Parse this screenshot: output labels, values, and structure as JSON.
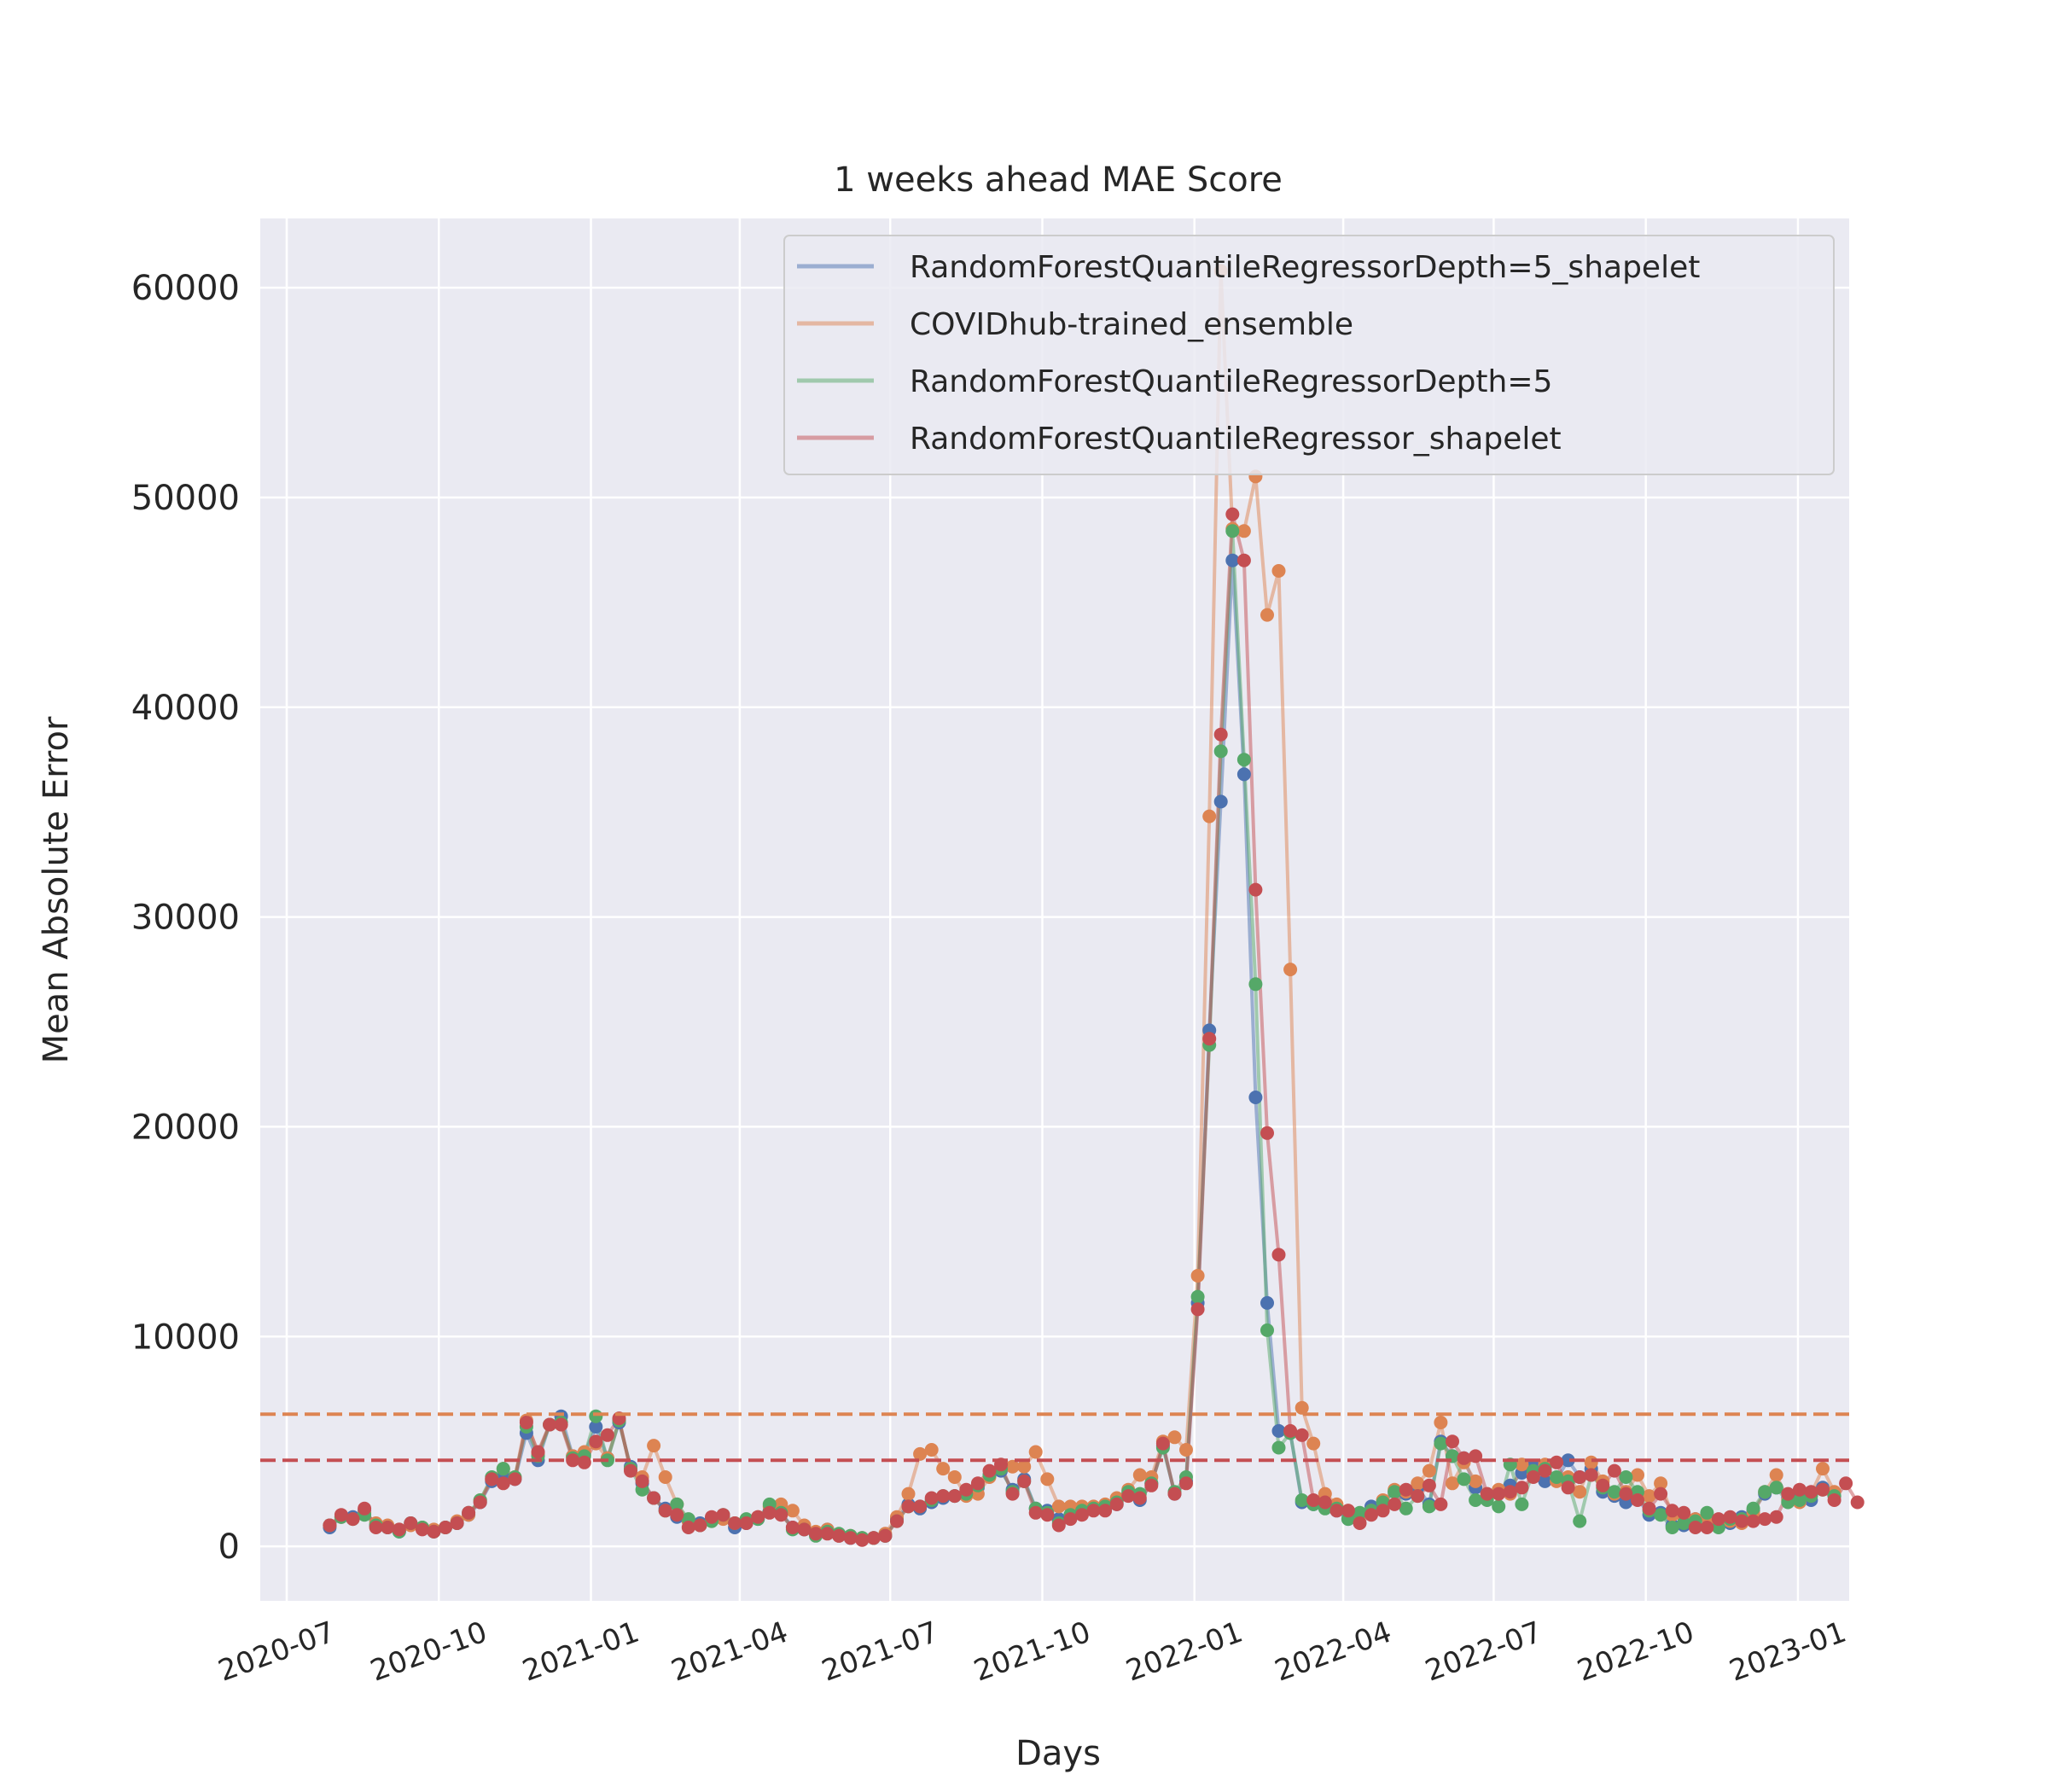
{
  "chart_data": {
    "type": "line",
    "title": "1 weeks ahead MAE Score",
    "xlabel": "Days",
    "ylabel": "Mean Absolute Error",
    "xlim": [
      "2020-06-15",
      "2023-02-01"
    ],
    "ylim": [
      -2600,
      63300
    ],
    "yticks": [
      0,
      10000,
      20000,
      30000,
      40000,
      50000,
      60000
    ],
    "xticks": [
      "2020-07",
      "2020-10",
      "2021-01",
      "2021-04",
      "2021-07",
      "2021-10",
      "2022-01",
      "2022-04",
      "2022-07",
      "2022-10",
      "2023-01"
    ],
    "grid": true,
    "legend_position": "top-right",
    "x_start": "2020-07-27",
    "x_step_days": 7,
    "series": [
      {
        "name": "RandomForestQuantileRegressorDepth=5_shapelet",
        "color": "#4c72b0",
        "values": [
          900,
          1400,
          1400,
          1700,
          1000,
          900,
          700,
          1100,
          900,
          700,
          900,
          1100,
          1500,
          2100,
          3100,
          3300,
          3200,
          5400,
          4100,
          5800,
          6200,
          4300,
          4400,
          5700,
          4200,
          5900,
          3800,
          3000,
          2300,
          1800,
          1400,
          1200,
          1100,
          1300,
          1400,
          900,
          1100,
          1300,
          1700,
          1600,
          900,
          800,
          600,
          800,
          500,
          400,
          400,
          400,
          500,
          1300,
          2000,
          1800,
          2100,
          2300,
          2400,
          2500,
          2800,
          3400,
          3600,
          2700,
          3200,
          1800,
          1700,
          1300,
          1500,
          1600,
          1800,
          1800,
          2000,
          2500,
          2200,
          3000,
          4800,
          2500,
          3100,
          11600,
          24600,
          35500,
          47000,
          36800,
          21400,
          11600,
          5500,
          5400,
          2100,
          2000,
          1900,
          1700,
          1300,
          1500,
          1900,
          2100,
          2600,
          2500,
          2800,
          2000,
          5000,
          4300,
          4200,
          2800,
          2400,
          2600,
          2900,
          3500,
          3800,
          3100,
          3200,
          4100,
          3300,
          3700,
          2600,
          2400,
          2100,
          2300,
          1500,
          1600,
          1000,
          1000,
          1300,
          1400,
          1200,
          1100,
          1400,
          1700,
          2500,
          2800,
          2300,
          2400,
          2200,
          2800,
          2400
        ]
      },
      {
        "name": "COVIDhub-trained_ensemble",
        "color": "#dd8452",
        "values": [
          1000,
          1400,
          1300,
          1600,
          1100,
          1000,
          800,
          1000,
          900,
          800,
          900,
          1200,
          1500,
          2200,
          3200,
          3700,
          3300,
          6000,
          4400,
          5800,
          5800,
          4300,
          4500,
          4900,
          4200,
          6000,
          3700,
          3300,
          4800,
          3300,
          2000,
          1200,
          1000,
          1200,
          1300,
          1100,
          1200,
          1400,
          1900,
          2000,
          1700,
          1000,
          700,
          800,
          500,
          500,
          400,
          400,
          600,
          1400,
          2500,
          4400,
          4600,
          3700,
          3300,
          2400,
          2500,
          3300,
          3700,
          3800,
          3800,
          4500,
          3200,
          1900,
          1900,
          1900,
          1900,
          2000,
          2300,
          2700,
          3400,
          3300,
          5000,
          5200,
          4600,
          12900,
          34800,
          60800,
          48500,
          48400,
          51000,
          44400,
          46500,
          27500,
          6600,
          4900,
          2500,
          2000,
          1700,
          1500,
          1700,
          2200,
          2700,
          2600,
          3000,
          3600,
          5900,
          3000,
          4000,
          3100,
          2500,
          2700,
          2500,
          3900,
          3400,
          3900,
          3100,
          3300,
          2600,
          4000,
          3100,
          2500,
          2600,
          3400,
          2400,
          3000,
          1500,
          1400,
          1300,
          1400,
          1200,
          1200,
          1100,
          1600,
          2600,
          3400,
          2200,
          2100,
          2500,
          3700,
          2600
        ]
      },
      {
        "name": "RandomForestQuantileRegressorDepth=5",
        "color": "#55a868",
        "values": [
          1000,
          1400,
          1300,
          1500,
          1000,
          900,
          700,
          1100,
          900,
          700,
          900,
          1100,
          1600,
          2200,
          3300,
          3700,
          3300,
          5700,
          4300,
          5800,
          5900,
          4200,
          4300,
          6200,
          4100,
          6000,
          3700,
          2700,
          2300,
          1700,
          2000,
          1300,
          1000,
          1200,
          1500,
          1100,
          1300,
          1300,
          2000,
          1600,
          800,
          800,
          500,
          700,
          600,
          500,
          400,
          400,
          500,
          1200,
          1900,
          1900,
          2200,
          2400,
          2400,
          2500,
          2900,
          3400,
          3700,
          2600,
          3100,
          1800,
          1600,
          1100,
          1500,
          1700,
          1800,
          1900,
          2100,
          2600,
          2500,
          3000,
          4700,
          2600,
          3300,
          11900,
          23900,
          37900,
          48400,
          37500,
          26800,
          10300,
          4700,
          5400,
          2200,
          2000,
          1800,
          1800,
          1300,
          1600,
          1700,
          2100,
          2600,
          1800,
          2400,
          1900,
          4900,
          4300,
          3200,
          2200,
          2200,
          1900,
          3900,
          2000,
          3600,
          3700,
          3300,
          3100,
          1200,
          3400,
          2800,
          2600,
          3300,
          2600,
          1700,
          1500,
          900,
          1100,
          1200,
          1600,
          900,
          1300,
          1300,
          1800,
          2600,
          2800,
          2100,
          2200,
          2400,
          2700,
          2400
        ]
      },
      {
        "name": "RandomForestQuantileRegressor_shapelet",
        "color": "#c44e52",
        "values": [
          1000,
          1500,
          1300,
          1800,
          900,
          900,
          800,
          1100,
          800,
          700,
          900,
          1100,
          1600,
          2100,
          3200,
          3000,
          3200,
          5900,
          4500,
          5800,
          5800,
          4100,
          4000,
          5000,
          5300,
          6100,
          3600,
          3100,
          2300,
          1700,
          1500,
          900,
          1000,
          1400,
          1500,
          1100,
          1100,
          1400,
          1600,
          1500,
          900,
          800,
          600,
          600,
          500,
          400,
          300,
          400,
          500,
          1200,
          1900,
          1900,
          2300,
          2400,
          2400,
          2700,
          3000,
          3600,
          3900,
          2500,
          3100,
          1600,
          1500,
          1000,
          1300,
          1500,
          1700,
          1700,
          2000,
          2400,
          2300,
          2900,
          4900,
          2500,
          3000,
          11300,
          24200,
          38700,
          49200,
          47000,
          31300,
          19700,
          13900,
          5500,
          5300,
          2200,
          2100,
          1700,
          1700,
          1100,
          1500,
          1700,
          2000,
          2700,
          2400,
          2900,
          2000,
          5000,
          4200,
          4300,
          2500,
          2500,
          2600,
          2800,
          3300,
          3600,
          4000,
          2800,
          3300,
          3400,
          2900,
          3600,
          2500,
          2200,
          1800,
          2500,
          1700,
          1600,
          900,
          900,
          1300,
          1400,
          1200,
          1200,
          1300,
          1400,
          2500,
          2700,
          2600,
          2700,
          2200,
          3000,
          2100
        ]
      }
    ],
    "reference_lines": [
      {
        "value": 6300,
        "color": "#dd8452",
        "style": "dashed"
      },
      {
        "value": 4100,
        "color": "#c44e52",
        "style": "dashed"
      }
    ]
  }
}
